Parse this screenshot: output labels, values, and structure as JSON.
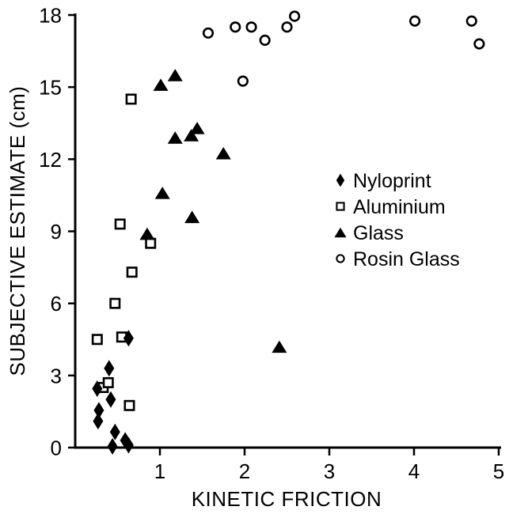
{
  "figure": {
    "background": "#ffffff",
    "ink_color": "#000000"
  },
  "chart_data": {
    "type": "scatter",
    "title": "",
    "xlabel": "KINETIC FRICTION",
    "ylabel": "SUBJECTIVE ESTIMATE (cm)",
    "xlim": [
      0,
      5
    ],
    "ylim": [
      0,
      18
    ],
    "x_ticks": [
      1,
      2,
      3,
      4,
      5
    ],
    "y_ticks": [
      0,
      3,
      6,
      9,
      12,
      15,
      18
    ],
    "grid": false,
    "legend_position": "middle-right",
    "series": [
      {
        "name": "Nyloprint",
        "marker": "filled-diamond",
        "points": [
          [
            0.63,
            4.55
          ],
          [
            0.4,
            3.3
          ],
          [
            0.26,
            2.45
          ],
          [
            0.42,
            2.0
          ],
          [
            0.28,
            1.55
          ],
          [
            0.27,
            1.1
          ],
          [
            0.47,
            0.65
          ],
          [
            0.44,
            0.05
          ],
          [
            0.59,
            0.3
          ],
          [
            0.63,
            0.1
          ]
        ]
      },
      {
        "name": "Aluminium",
        "marker": "open-square",
        "points": [
          [
            0.66,
            14.5
          ],
          [
            0.53,
            9.3
          ],
          [
            0.89,
            8.5
          ],
          [
            0.67,
            7.3
          ],
          [
            0.47,
            6.0
          ],
          [
            0.26,
            4.5
          ],
          [
            0.55,
            4.6
          ],
          [
            0.33,
            2.5
          ],
          [
            0.39,
            2.7
          ],
          [
            0.64,
            1.75
          ]
        ]
      },
      {
        "name": "Glass",
        "marker": "filled-triangle",
        "points": [
          [
            1.01,
            15.1
          ],
          [
            1.18,
            15.5
          ],
          [
            1.44,
            13.3
          ],
          [
            1.37,
            13.0
          ],
          [
            1.18,
            12.9
          ],
          [
            1.75,
            12.25
          ],
          [
            1.03,
            10.6
          ],
          [
            1.38,
            9.6
          ],
          [
            0.85,
            8.9
          ],
          [
            2.41,
            4.2
          ]
        ]
      },
      {
        "name": "Rosin Glass",
        "marker": "open-circle",
        "points": [
          [
            1.57,
            17.25
          ],
          [
            1.89,
            17.5
          ],
          [
            2.08,
            17.5
          ],
          [
            2.24,
            16.95
          ],
          [
            2.5,
            17.5
          ],
          [
            2.59,
            17.95
          ],
          [
            1.98,
            15.25
          ],
          [
            4.01,
            17.75
          ],
          [
            4.68,
            17.75
          ],
          [
            4.77,
            16.8
          ]
        ]
      }
    ]
  }
}
